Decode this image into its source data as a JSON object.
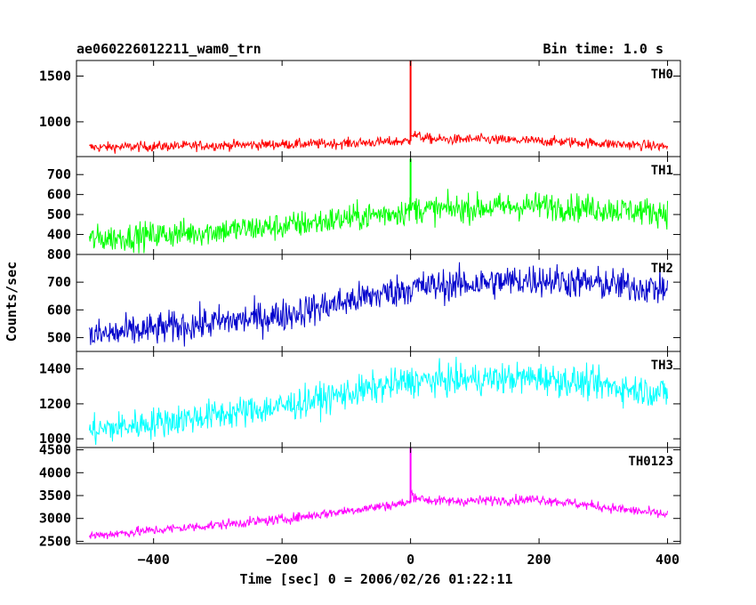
{
  "header": {
    "left_title": "ae060226012211_wam0_trn",
    "right_title": "Bin time: 1.0 s"
  },
  "chart_data": {
    "type": "line",
    "title": "ae060226012211_wam0_trn",
    "bin_time": "Bin time: 1.0 s",
    "xlabel": "Time [sec] 0 = 2006/02/26 01:22:11",
    "ylabel": "Counts/sec",
    "xlim": [
      -520,
      420
    ],
    "x_ticks": [
      -400,
      -200,
      0,
      200,
      400
    ],
    "x_tick_labels": [
      "−400",
      "−200",
      "0",
      "200",
      "400"
    ],
    "x_range": [
      -500,
      400
    ],
    "panels": [
      {
        "name": "TH0",
        "color": "#ff0000",
        "ylim": [
          620,
          1670
        ],
        "y_ticks": [
          1000,
          1500
        ],
        "y_tick_labels": [
          "1000",
          "1500"
        ],
        "baseline": [
          [
            -500,
            720
          ],
          [
            -100,
            765
          ],
          [
            0,
            790
          ],
          [
            100,
            810
          ],
          [
            250,
            780
          ],
          [
            400,
            730
          ]
        ],
        "noise": 28,
        "spike_peak": 1670,
        "decay_amp": 90,
        "decay_tau": 20
      },
      {
        "name": "TH1",
        "color": "#00ff00",
        "ylim": [
          300,
          790
        ],
        "y_ticks": [
          400,
          500,
          600,
          700
        ],
        "y_tick_labels": [
          "400",
          "500",
          "600",
          "700"
        ],
        "baseline": [
          [
            -500,
            375
          ],
          [
            -200,
            440
          ],
          [
            0,
            520
          ],
          [
            200,
            545
          ],
          [
            400,
            510
          ]
        ],
        "noise": 35,
        "spike_peak": 780,
        "decay_amp": 20,
        "decay_tau": 10
      },
      {
        "name": "TH2",
        "color": "#0000cc",
        "ylim": [
          450,
          800
        ],
        "y_ticks": [
          500,
          600,
          700,
          800
        ],
        "y_tick_labels": [
          "500",
          "600",
          "700",
          "800"
        ],
        "baseline": [
          [
            -500,
            505
          ],
          [
            -200,
            580
          ],
          [
            0,
            680
          ],
          [
            200,
            710
          ],
          [
            400,
            675
          ]
        ],
        "noise": 30,
        "spike_peak": 0,
        "decay_amp": 0,
        "decay_tau": 10
      },
      {
        "name": "TH3",
        "color": "#00ffff",
        "ylim": [
          950,
          1500
        ],
        "y_ticks": [
          1000,
          1200,
          1400
        ],
        "y_tick_labels": [
          "1000",
          "1200",
          "1400"
        ],
        "baseline": [
          [
            -500,
            1045
          ],
          [
            -200,
            1185
          ],
          [
            0,
            1330
          ],
          [
            200,
            1350
          ],
          [
            400,
            1260
          ]
        ],
        "noise": 45,
        "spike_peak": 0,
        "decay_amp": 0,
        "decay_tau": 10
      },
      {
        "name": "TH0123",
        "color": "#ff00ff",
        "ylim": [
          2450,
          4550
        ],
        "y_ticks": [
          2500,
          3000,
          3500,
          4000,
          4500
        ],
        "y_tick_labels": [
          "2500",
          "3000",
          "3500",
          "4000",
          "4500"
        ],
        "baseline": [
          [
            -500,
            2620
          ],
          [
            -200,
            2980
          ],
          [
            0,
            3350
          ],
          [
            200,
            3420
          ],
          [
            400,
            3080
          ]
        ],
        "noise": 55,
        "spike_peak": 4550,
        "decay_amp": 200,
        "decay_tau": 18
      }
    ]
  }
}
